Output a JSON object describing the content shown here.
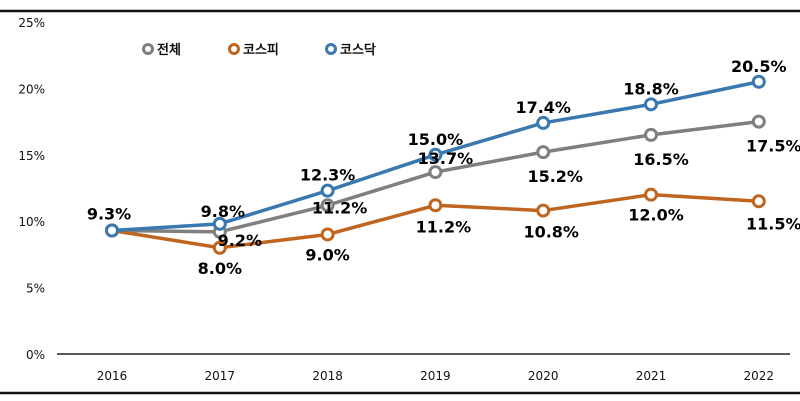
{
  "chart_data": {
    "type": "line",
    "categories": [
      "2016",
      "2017",
      "2018",
      "2019",
      "2020",
      "2021",
      "2022"
    ],
    "y_ticks": [
      "0%",
      "5%",
      "10%",
      "15%",
      "20%",
      "25%"
    ],
    "ylim": [
      0,
      25
    ],
    "grid": false,
    "legend_position": "top-left",
    "series": [
      {
        "name": "전체",
        "color": "#7f7f7f",
        "values": [
          9.3,
          9.2,
          11.2,
          13.7,
          15.2,
          16.5,
          17.5
        ],
        "labels": [
          "",
          "9.2%",
          "11.2%",
          "13.7%",
          "15.2%",
          "16.5%",
          "17.5%"
        ]
      },
      {
        "name": "코스피",
        "color": "#c0651f",
        "values": [
          9.3,
          8.0,
          9.0,
          11.2,
          10.8,
          12.0,
          11.5
        ],
        "labels": [
          "",
          "8.0%",
          "9.0%",
          "11.2%",
          "10.8%",
          "12.0%",
          "11.5%"
        ]
      },
      {
        "name": "코스닥",
        "color": "#3a78b0",
        "values": [
          9.3,
          9.8,
          12.3,
          15.0,
          17.4,
          18.8,
          20.5
        ],
        "labels": [
          "9.3%",
          "9.8%",
          "12.3%",
          "15.0%",
          "17.4%",
          "18.8%",
          "20.5%"
        ]
      }
    ]
  }
}
